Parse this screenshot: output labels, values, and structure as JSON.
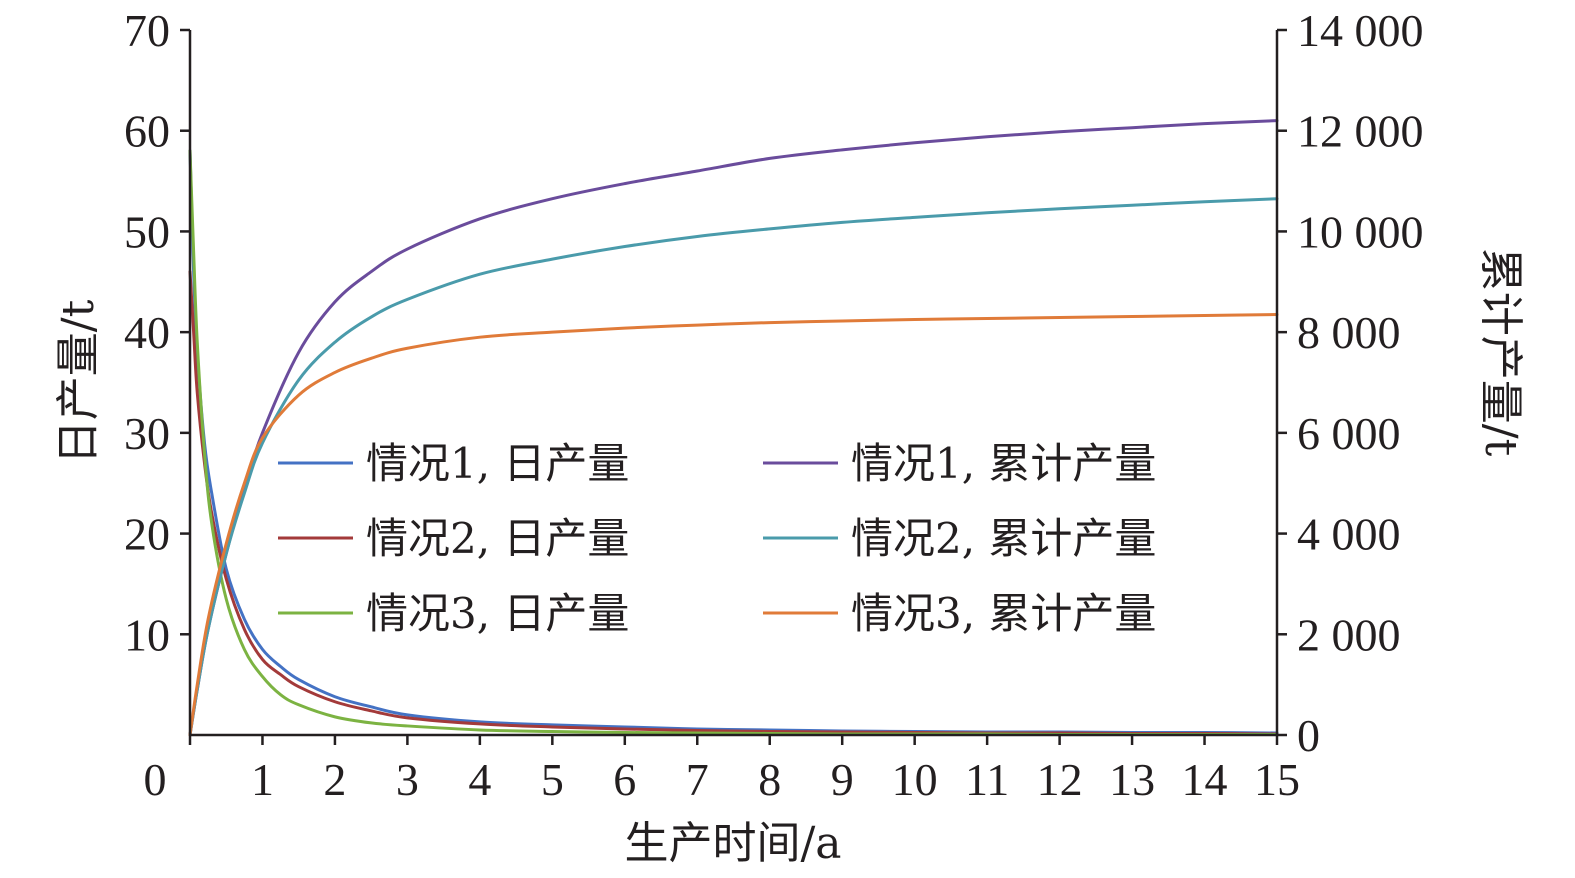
{
  "chart_data": {
    "type": "line",
    "xlabel": "生产时间/a",
    "ylabel_left": "日产量/t",
    "ylabel_right": "累计产量/t",
    "xlim": [
      0,
      15
    ],
    "ylim_left": [
      0,
      70
    ],
    "ylim_right": [
      0,
      14000
    ],
    "x_ticks": [
      "0",
      "1",
      "2",
      "3",
      "4",
      "5",
      "6",
      "7",
      "8",
      "9",
      "10",
      "11",
      "12",
      "13",
      "14",
      "15"
    ],
    "y_left_ticks": [
      "10",
      "20",
      "30",
      "40",
      "50",
      "60",
      "70"
    ],
    "y_right_ticks": [
      "0",
      "2 000",
      "4 000",
      "6 000",
      "8 000",
      "10 000",
      "12 000",
      "14 000"
    ],
    "grid": false,
    "legend_position": "center",
    "series": [
      {
        "name": "情况1, 日产量",
        "axis": "left",
        "color": "#4472c4",
        "x": [
          0,
          0.05,
          0.1,
          0.2,
          0.3,
          0.5,
          0.75,
          1,
          1.25,
          1.5,
          2,
          2.5,
          3,
          4,
          5,
          6,
          7,
          8,
          9,
          10,
          11,
          12,
          13,
          14,
          15
        ],
        "y": [
          58,
          46,
          38,
          29,
          24,
          16.5,
          11.5,
          8.5,
          6.8,
          5.5,
          3.8,
          2.8,
          2,
          1.3,
          1,
          0.8,
          0.6,
          0.5,
          0.4,
          0.35,
          0.3,
          0.3,
          0.25,
          0.25,
          0.2
        ]
      },
      {
        "name": "情况2, 日产量",
        "axis": "left",
        "color": "#a33a3a",
        "x": [
          0,
          0.05,
          0.1,
          0.2,
          0.3,
          0.5,
          0.75,
          1,
          1.25,
          1.5,
          2,
          2.5,
          3,
          4,
          5,
          6,
          7,
          8,
          9,
          10,
          11,
          12,
          13,
          14,
          15
        ],
        "y": [
          46,
          40,
          34,
          27,
          22,
          15.5,
          10.5,
          7.5,
          6,
          4.8,
          3.3,
          2.4,
          1.7,
          1.1,
          0.8,
          0.6,
          0.45,
          0.35,
          0.3,
          0.25,
          0.2,
          0.2,
          0.15,
          0.15,
          0.1
        ]
      },
      {
        "name": "情况3, 日产量",
        "axis": "left",
        "color": "#7cb342",
        "x": [
          0,
          0.05,
          0.1,
          0.2,
          0.3,
          0.5,
          0.75,
          1,
          1.25,
          1.5,
          2,
          2.5,
          3,
          4,
          5,
          6,
          7,
          8,
          9,
          10,
          11,
          12,
          13,
          14,
          15
        ],
        "y": [
          58,
          48,
          39,
          28,
          21,
          13.5,
          8.5,
          5.8,
          4,
          3,
          1.8,
          1.2,
          0.9,
          0.5,
          0.35,
          0.25,
          0.2,
          0.15,
          0.1,
          0.1,
          0.1,
          0.05,
          0.05,
          0.05,
          0.05
        ]
      },
      {
        "name": "情况1, 累计产量",
        "axis": "right",
        "color": "#6a4c9c",
        "x": [
          0,
          0.1,
          0.25,
          0.5,
          0.75,
          1,
          1.5,
          2,
          2.5,
          3,
          4,
          5,
          6,
          7,
          8,
          9,
          10,
          11,
          12,
          13,
          14,
          15
        ],
        "y": [
          0,
          900,
          2100,
          3600,
          4900,
          6000,
          7600,
          8600,
          9200,
          9650,
          10250,
          10650,
          10950,
          11200,
          11450,
          11620,
          11760,
          11880,
          11980,
          12060,
          12140,
          12200
        ]
      },
      {
        "name": "情况2, 累计产量",
        "axis": "right",
        "color": "#4a9bab",
        "x": [
          0,
          0.1,
          0.25,
          0.5,
          0.75,
          1,
          1.5,
          2,
          2.5,
          3,
          4,
          5,
          6,
          7,
          8,
          9,
          10,
          11,
          12,
          13,
          14,
          15
        ],
        "y": [
          0,
          900,
          2100,
          3600,
          4800,
          5800,
          7050,
          7800,
          8300,
          8650,
          9150,
          9450,
          9700,
          9900,
          10050,
          10180,
          10280,
          10370,
          10450,
          10520,
          10590,
          10650
        ]
      },
      {
        "name": "情况3, 累计产量",
        "axis": "right",
        "color": "#e07b39",
        "x": [
          0,
          0.1,
          0.25,
          0.5,
          0.75,
          1,
          1.5,
          2,
          2.5,
          3,
          4,
          5,
          6,
          7,
          8,
          9,
          10,
          11,
          12,
          13,
          14,
          15
        ],
        "y": [
          0,
          1000,
          2300,
          3800,
          5000,
          5900,
          6750,
          7200,
          7480,
          7680,
          7900,
          8000,
          8080,
          8140,
          8190,
          8220,
          8250,
          8270,
          8290,
          8310,
          8330,
          8350
        ]
      }
    ]
  }
}
